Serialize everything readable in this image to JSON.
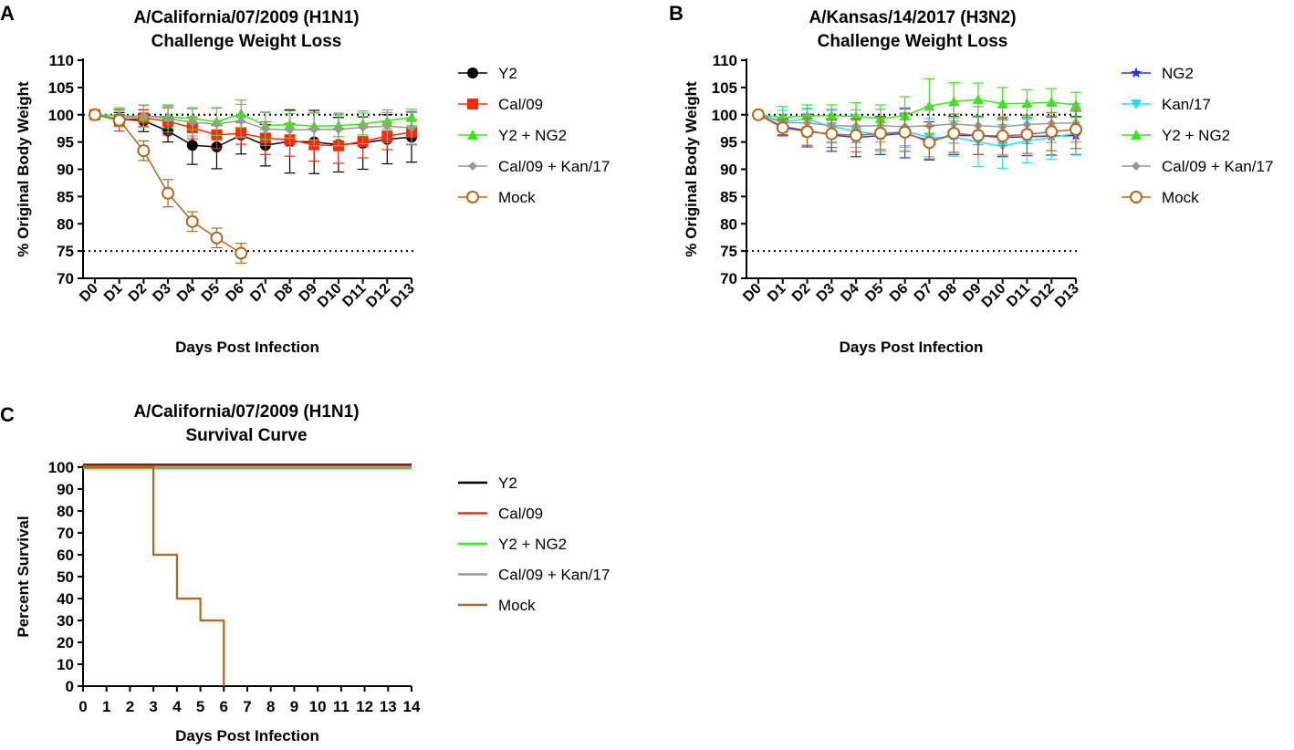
{
  "chart_data": [
    {
      "panel_label": "A",
      "type": "line",
      "title_line1": "A/California/07/2009 (H1N1)",
      "title_line2": "Challenge Weight Loss",
      "xlabel": "Days Post Infection",
      "ylabel": "% Original Body Weight",
      "categories": [
        "D0",
        "D1",
        "D2",
        "D3",
        "D4",
        "D5",
        "D6",
        "D7",
        "D8",
        "D9",
        "D10",
        "D11",
        "D12",
        "D13"
      ],
      "ylim": [
        70,
        110
      ],
      "yticks": [
        70,
        75,
        80,
        85,
        90,
        95,
        100,
        105,
        110
      ],
      "reference_lines": [
        100,
        75
      ],
      "legend_position": "right",
      "series": [
        {
          "name": "Y2",
          "color": "#000000",
          "marker": "circle",
          "values": [
            100,
            99.2,
            98.9,
            97.0,
            94.4,
            94.1,
            96.3,
            94.4,
            95.1,
            95.0,
            94.5,
            94.8,
            95.5,
            95.9
          ],
          "errors": [
            0.5,
            1.2,
            2.0,
            2.0,
            3.5,
            4.0,
            3.5,
            3.8,
            5.8,
            5.8,
            5.0,
            4.8,
            4.5,
            4.6
          ]
        },
        {
          "name": "Cal/09",
          "color": "#ff2a00",
          "marker": "square",
          "values": [
            100,
            99.0,
            99.4,
            98.8,
            97.6,
            96.3,
            96.6,
            95.7,
            95.4,
            94.5,
            94.3,
            95.1,
            96.1,
            96.8
          ],
          "errors": [
            0.5,
            2.0,
            1.5,
            2.5,
            2.0,
            2.5,
            2.0,
            3.0,
            3.0,
            3.0,
            3.2,
            3.0,
            2.5,
            2.3
          ]
        },
        {
          "name": "Y2 + NG2",
          "color": "#33ee11",
          "marker": "triangle",
          "values": [
            100,
            99.8,
            99.7,
            99.6,
            99.3,
            98.7,
            100.2,
            98.0,
            98.2,
            97.9,
            98.0,
            98.3,
            98.9,
            99.5
          ],
          "errors": [
            0.4,
            1.5,
            2.0,
            2.0,
            2.0,
            2.5,
            2.5,
            2.5,
            2.5,
            2.5,
            2.0,
            2.0,
            1.5,
            1.5
          ]
        },
        {
          "name": "Cal/09 + Kan/17",
          "color": "#999999",
          "marker": "diamond",
          "values": [
            100,
            99.3,
            99.8,
            99.3,
            98.6,
            98.3,
            98.9,
            97.4,
            97.2,
            97.3,
            97.3,
            97.7,
            97.9,
            97.6
          ],
          "errors": [
            0.4,
            1.5,
            2.0,
            2.5,
            2.5,
            3.0,
            3.0,
            3.0,
            3.0,
            3.0,
            3.0,
            3.0,
            3.0,
            3.0
          ]
        },
        {
          "name": "Mock",
          "color": "#b8651a",
          "marker": "open-circle",
          "values": [
            100,
            99.0,
            93.4,
            85.6,
            80.4,
            77.4,
            74.6,
            null,
            null,
            null,
            null,
            null,
            null,
            null
          ],
          "errors": [
            0.4,
            1.0,
            1.8,
            2.5,
            1.8,
            1.8,
            1.8,
            null,
            null,
            null,
            null,
            null,
            null,
            null
          ]
        }
      ]
    },
    {
      "panel_label": "B",
      "type": "line",
      "title_line1": "A/Kansas/14/2017 (H3N2)",
      "title_line2": "Challenge Weight Loss",
      "xlabel": "Days Post Infection",
      "ylabel": "% Original Body Weight",
      "categories": [
        "D0",
        "D1",
        "D2",
        "D3",
        "D4",
        "D5",
        "D6",
        "D7",
        "D8",
        "D9",
        "D10",
        "D11",
        "D12",
        "D13"
      ],
      "ylim": [
        70,
        110
      ],
      "yticks": [
        70,
        75,
        80,
        85,
        90,
        95,
        100,
        105,
        110
      ],
      "reference_lines": [
        100,
        75
      ],
      "legend_position": "right",
      "series": [
        {
          "name": "NG2",
          "color": "#2233ff",
          "marker": "star",
          "values": [
            100,
            97.8,
            97.1,
            96.3,
            95.8,
            96.2,
            96.6,
            95.2,
            96.2,
            96.2,
            95.8,
            96.0,
            96.1,
            96.2
          ],
          "errors": [
            0.5,
            1.5,
            3.0,
            3.0,
            3.5,
            3.5,
            4.5,
            3.5,
            3.5,
            3.5,
            3.5,
            3.5,
            3.5,
            3.5
          ]
        },
        {
          "name": "Kan/17",
          "color": "#22ddff",
          "marker": "triangle-down",
          "values": [
            100,
            98.8,
            99.2,
            97.8,
            97.0,
            96.3,
            97.0,
            95.8,
            95.9,
            95.0,
            94.2,
            95.2,
            95.8,
            96.6
          ],
          "errors": [
            0.5,
            2.0,
            2.0,
            3.0,
            3.0,
            3.0,
            3.0,
            3.5,
            3.5,
            4.5,
            4.0,
            4.0,
            4.0,
            4.0
          ]
        },
        {
          "name": "Y2 + NG2",
          "color": "#33ee11",
          "marker": "triangle",
          "values": [
            100,
            99.5,
            99.8,
            99.8,
            99.7,
            99.3,
            99.8,
            101.6,
            102.4,
            102.8,
            102.0,
            102.1,
            102.3,
            101.8
          ],
          "errors": [
            0.5,
            2.0,
            2.0,
            2.0,
            2.5,
            2.5,
            3.5,
            5.0,
            3.5,
            3.0,
            3.0,
            2.5,
            2.5,
            2.3
          ]
        },
        {
          "name": "Cal/09 + Kan/17",
          "color": "#999999",
          "marker": "diamond",
          "values": [
            100,
            98.6,
            98.5,
            98.0,
            97.9,
            98.0,
            97.8,
            98.0,
            98.3,
            98.0,
            97.8,
            98.2,
            98.4,
            98.5
          ],
          "errors": [
            0.5,
            1.5,
            2.5,
            3.0,
            3.0,
            3.0,
            3.5,
            3.5,
            3.5,
            3.5,
            3.5,
            3.5,
            3.5,
            3.5
          ]
        },
        {
          "name": "Mock",
          "color": "#b8651a",
          "marker": "open-circle",
          "values": [
            100,
            97.6,
            96.9,
            96.5,
            96.2,
            96.6,
            96.8,
            94.9,
            96.6,
            96.2,
            96.1,
            96.4,
            96.9,
            97.3
          ],
          "errors": [
            0.5,
            1.5,
            2.5,
            2.5,
            3.0,
            3.0,
            3.5,
            3.0,
            3.5,
            3.5,
            3.5,
            3.5,
            3.5,
            3.5
          ]
        }
      ]
    },
    {
      "panel_label": "C",
      "type": "line",
      "style": "step",
      "title_line1": "A/California/07/2009 (H1N1)",
      "title_line2": "Survival Curve",
      "xlabel": "Days Post Infection",
      "ylabel": "Percent Survival",
      "xlim": [
        0,
        14
      ],
      "xticks": [
        0,
        1,
        2,
        3,
        4,
        5,
        6,
        7,
        8,
        9,
        10,
        11,
        12,
        13,
        14
      ],
      "ylim": [
        0,
        100
      ],
      "yticks": [
        0,
        10,
        20,
        30,
        40,
        50,
        60,
        70,
        80,
        90,
        100
      ],
      "legend_position": "right",
      "series": [
        {
          "name": "Y2",
          "color": "#000000",
          "x": [
            0,
            14
          ],
          "values": [
            100,
            100
          ]
        },
        {
          "name": "Cal/09",
          "color": "#ff2a00",
          "x": [
            0,
            14
          ],
          "values": [
            100,
            100
          ]
        },
        {
          "name": "Y2 + NG2",
          "color": "#33ee11",
          "x": [
            0,
            14
          ],
          "values": [
            100,
            100
          ]
        },
        {
          "name": "Cal/09 + Kan/17",
          "color": "#999999",
          "x": [
            0,
            14
          ],
          "values": [
            100,
            100
          ]
        },
        {
          "name": "Mock",
          "color": "#b8651a",
          "x": [
            0,
            3,
            4,
            5,
            6
          ],
          "values": [
            100,
            60,
            40,
            30,
            0
          ]
        }
      ]
    }
  ]
}
